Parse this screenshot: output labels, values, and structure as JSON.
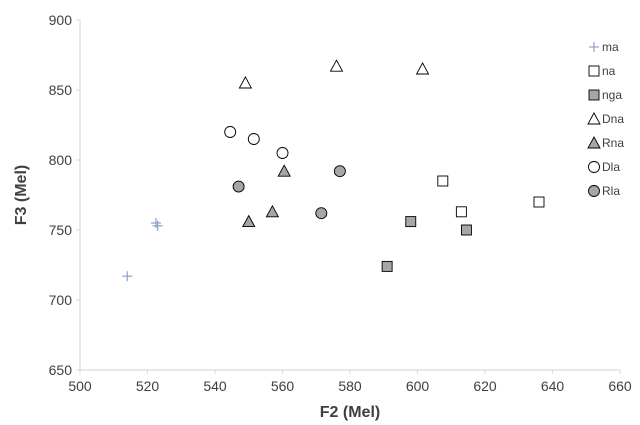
{
  "chart_data": {
    "type": "scatter",
    "xlabel": "F2 (Mel)",
    "ylabel": "F3 (Mel)",
    "xlim": [
      500,
      660
    ],
    "ylim": [
      650,
      900
    ],
    "xticks": [
      500,
      520,
      540,
      560,
      580,
      600,
      620,
      640,
      660
    ],
    "yticks": [
      650,
      700,
      750,
      800,
      850,
      900
    ],
    "grid": false,
    "legend_position": "right",
    "series": [
      {
        "name": "ma",
        "marker": "plus",
        "color": "#8ea0c8",
        "points": [
          [
            514,
            717
          ],
          [
            522.5,
            755
          ],
          [
            523,
            753
          ]
        ]
      },
      {
        "name": "na",
        "marker": "square-open",
        "color": "#000000",
        "points": [
          [
            607.5,
            785
          ],
          [
            613,
            763
          ],
          [
            636,
            770
          ]
        ]
      },
      {
        "name": "nga",
        "marker": "square-filled",
        "color": "#a6a6a6",
        "points": [
          [
            591,
            724
          ],
          [
            598,
            756
          ],
          [
            614.5,
            750
          ]
        ]
      },
      {
        "name": "Dna",
        "marker": "triangle-open",
        "color": "#000000",
        "points": [
          [
            549,
            855
          ],
          [
            576,
            867
          ],
          [
            601.5,
            865
          ]
        ]
      },
      {
        "name": "Rna",
        "marker": "triangle-filled",
        "color": "#a6a6a6",
        "points": [
          [
            550,
            756
          ],
          [
            557,
            763
          ],
          [
            560.5,
            792
          ]
        ]
      },
      {
        "name": "Dla",
        "marker": "circle-open",
        "color": "#000000",
        "points": [
          [
            544.5,
            820
          ],
          [
            551.5,
            815
          ],
          [
            560,
            805
          ]
        ]
      },
      {
        "name": "Rla",
        "marker": "circle-filled",
        "color": "#a6a6a6",
        "points": [
          [
            547,
            781
          ],
          [
            571.5,
            762
          ],
          [
            577,
            792
          ]
        ]
      }
    ]
  }
}
